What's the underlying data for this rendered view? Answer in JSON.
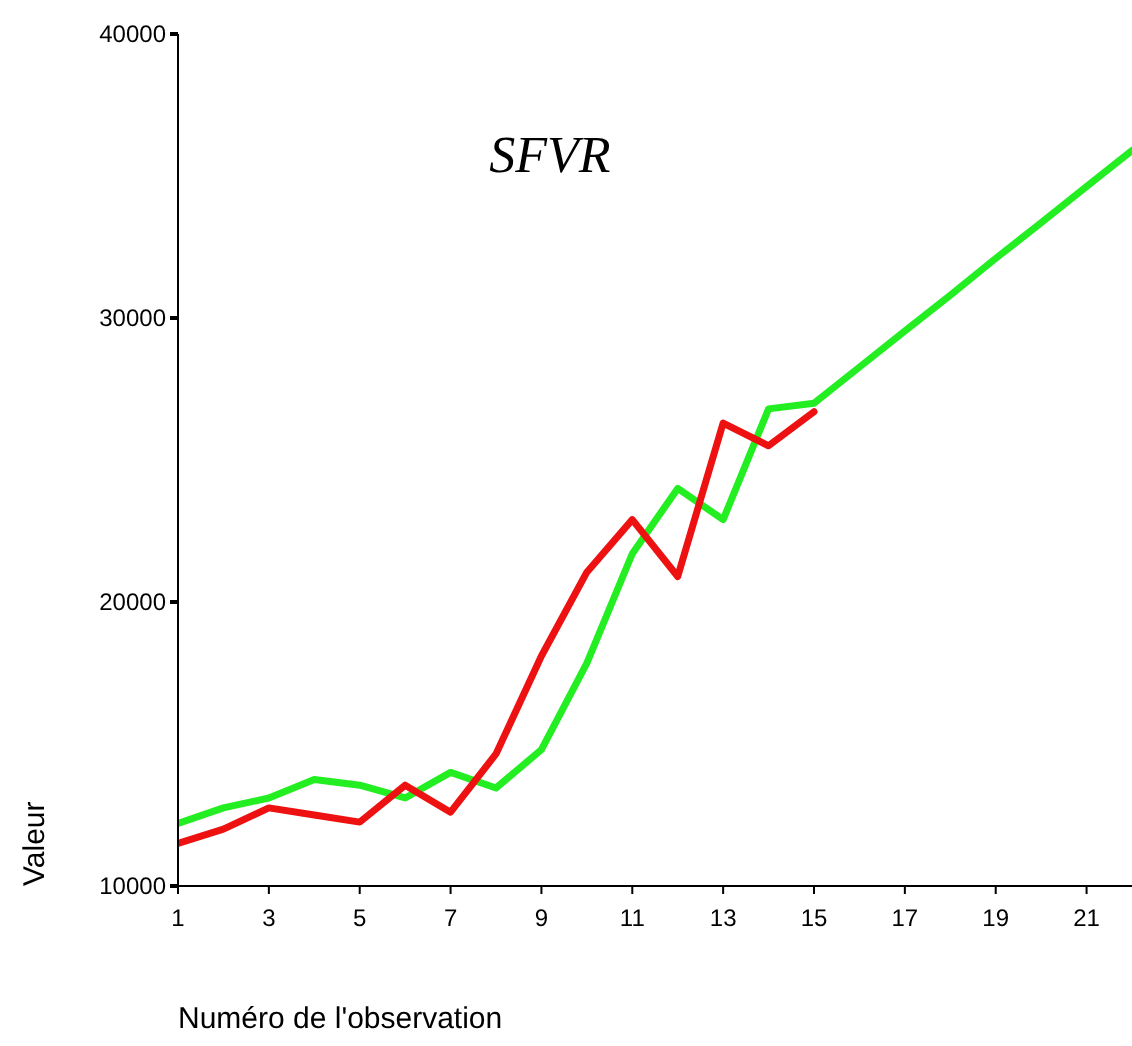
{
  "chart_data": {
    "type": "line",
    "title": "SFVR",
    "xlabel": "Numéro de l'observation",
    "ylabel": "Valeur",
    "xlim": [
      1,
      22
    ],
    "xticks": [
      1,
      3,
      5,
      7,
      9,
      11,
      13,
      15,
      17,
      19,
      21
    ],
    "ylim": [
      10000,
      40000
    ],
    "yticks": [
      10000,
      20000,
      30000,
      40000
    ],
    "grid": false,
    "series": [
      {
        "color": "#22ee22",
        "x": [
          1,
          2,
          3,
          4,
          5,
          6,
          7,
          8,
          9,
          10,
          11,
          12,
          13,
          14,
          15,
          16,
          17,
          18,
          19,
          20,
          21,
          22
        ],
        "values": [
          12200,
          12750,
          13100,
          13750,
          13550,
          13100,
          14000,
          13450,
          14800,
          17850,
          21700,
          24000,
          22900,
          26800,
          27000,
          28270,
          29540,
          30800,
          32100,
          33350,
          34630,
          35900
        ]
      },
      {
        "color": "#ee1111",
        "x": [
          1,
          2,
          3,
          4,
          5,
          6,
          7,
          8,
          9,
          10,
          11,
          12,
          13,
          14,
          15
        ],
        "values": [
          11500,
          12000,
          12750,
          12500,
          12250,
          13550,
          12600,
          14650,
          18100,
          21050,
          22900,
          20900,
          26300,
          25500,
          26700
        ]
      }
    ]
  }
}
